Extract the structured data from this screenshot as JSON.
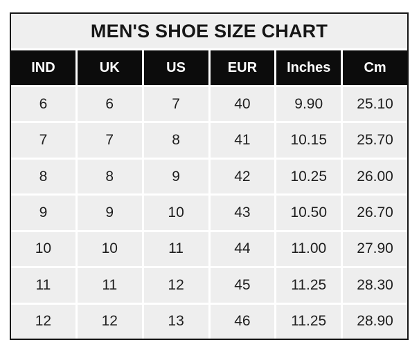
{
  "title": "MEN'S SHOE SIZE CHART",
  "colors": {
    "page_bg": "#ffffff",
    "border": "#151515",
    "title_bg": "#efefef",
    "header_bg": "#0c0c0c",
    "header_text": "#ffffff",
    "cell_bg": "#eeeeee",
    "cell_text": "#1e1e1e",
    "grid_line": "#ffffff"
  },
  "chart_data": {
    "type": "table",
    "title": "MEN'S SHOE SIZE CHART",
    "columns": [
      "IND",
      "UK",
      "US",
      "EUR",
      "Inches",
      "Cm"
    ],
    "rows": [
      [
        "6",
        "6",
        "7",
        "40",
        "9.90",
        "25.10"
      ],
      [
        "7",
        "7",
        "8",
        "41",
        "10.15",
        "25.70"
      ],
      [
        "8",
        "8",
        "9",
        "42",
        "10.25",
        "26.00"
      ],
      [
        "9",
        "9",
        "10",
        "43",
        "10.50",
        "26.70"
      ],
      [
        "10",
        "10",
        "11",
        "44",
        "11.00",
        "27.90"
      ],
      [
        "11",
        "11",
        "12",
        "45",
        "11.25",
        "28.30"
      ],
      [
        "12",
        "12",
        "13",
        "46",
        "11.25",
        "28.90"
      ]
    ],
    "layout": {
      "grid": true,
      "header_style": "inverted-black",
      "num_columns": 6,
      "num_rows": 7
    }
  }
}
